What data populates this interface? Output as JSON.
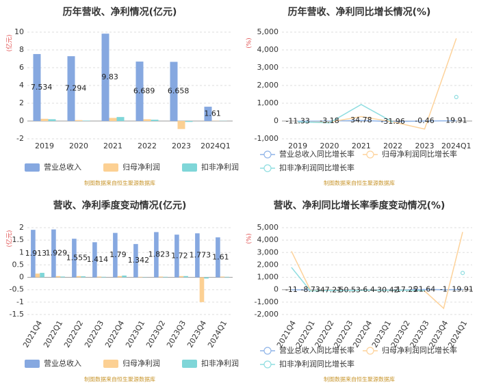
{
  "chart_data": [
    {
      "type": "bar",
      "title": "历年营收、净利情况(亿元)",
      "y_label": "(亿元)",
      "categories": [
        "2019",
        "2020",
        "2021",
        "2022",
        "2023",
        "2024Q1"
      ],
      "series": [
        {
          "name": "营业总收入",
          "color": "#86a8e0",
          "labels": true,
          "values": [
            7.534,
            7.294,
            9.83,
            6.689,
            6.658,
            1.61
          ]
        },
        {
          "name": "归母净利润",
          "color": "#fcd093",
          "values": [
            0.25,
            0.1,
            0.35,
            0.2,
            -0.9,
            0.02
          ]
        },
        {
          "name": "扣非净利润",
          "color": "#7fd6d8",
          "values": [
            0.2,
            0.05,
            0.45,
            0.15,
            -0.1,
            0.02
          ]
        }
      ],
      "ylim": [
        -2,
        10
      ],
      "yticks": [
        -2,
        0,
        2,
        4,
        6,
        8,
        10
      ],
      "grid": true,
      "note": "制图数据来自恒生聚源数据库"
    },
    {
      "type": "line",
      "title": "历年营收、净利同比增长情况(%)",
      "y_label": "(%)",
      "categories": [
        "2019",
        "2020",
        "2021",
        "2022",
        "2023",
        "2024Q1"
      ],
      "series": [
        {
          "name": "营业总收入同比增长率",
          "color": "#8fb4e8",
          "labels": true,
          "values": [
            -11.33,
            -3.18,
            34.78,
            -31.96,
            -0.46,
            19.91
          ]
        },
        {
          "name": "归母净利润同比增长率",
          "color": "#fdd29a",
          "values": [
            -60,
            -60,
            250,
            -50,
            -450,
            4650
          ]
        },
        {
          "name": "扣非净利润同比增长率",
          "color": "#8edde0",
          "values": [
            -50,
            -100,
            930,
            -60,
            null,
            1350
          ]
        }
      ],
      "ylim": [
        -1000,
        5000
      ],
      "yticks": [
        {
          "value": -1000,
          "label": "-1,000"
        },
        0,
        {
          "value": 1000,
          "label": "1,000"
        },
        {
          "value": 2000,
          "label": "2,000"
        },
        {
          "value": 3000,
          "label": "3,000"
        },
        {
          "value": 4000,
          "label": "4,000"
        },
        {
          "value": 5000,
          "label": "5,000"
        }
      ],
      "grid": true,
      "note": "制图数据来自恒生聚源数据库"
    },
    {
      "type": "bar",
      "title": "营收、净利季度变动情况(亿元)",
      "y_label": "(亿元)",
      "categories": [
        "2021Q4",
        "2022Q1",
        "2022Q2",
        "2022Q3",
        "2022Q4",
        "2023Q1",
        "2023Q2",
        "2023Q3",
        "2023Q4",
        "2024Q1"
      ],
      "series": [
        {
          "name": "营业总收入",
          "color": "#86a8e0",
          "labels": true,
          "values": [
            1.913,
            1.929,
            1.555,
            1.414,
            1.79,
            1.342,
            1.823,
            1.72,
            1.773,
            1.61
          ]
        },
        {
          "name": "归母净利润",
          "color": "#fcd093",
          "values": [
            0.15,
            0.05,
            0.05,
            0.03,
            0.05,
            0.02,
            0.03,
            0.05,
            -1.0,
            0.03
          ]
        },
        {
          "name": "扣非净利润",
          "color": "#7fd6d8",
          "values": [
            0.18,
            0.03,
            0.04,
            0.02,
            0.07,
            0.01,
            0.02,
            0.05,
            -0.05,
            0.02
          ]
        }
      ],
      "ylim": [
        -1.5,
        2
      ],
      "yticks": [
        -1.5,
        -1,
        -0.5,
        0,
        0.5,
        1,
        1.5,
        2
      ],
      "grid": true,
      "note": "制图数据来自恒生聚源数据库"
    },
    {
      "type": "line",
      "title": "营收、净利同比增长率季度变动情况(%)",
      "y_label": "(%)",
      "categories": [
        "2021Q4",
        "2022Q1",
        "2022Q2",
        "2022Q3",
        "2022Q4",
        "2023Q1",
        "2023Q2",
        "2023Q3",
        "2023Q4",
        "2024Q1"
      ],
      "series": [
        {
          "name": "营业总收入同比增长率",
          "color": "#8fb4e8",
          "labels": true,
          "values": [
            -11,
            -8.73,
            -47.21,
            -50.53,
            -6.4,
            -30.42,
            -17.25,
            21.64,
            -1,
            19.91
          ]
        },
        {
          "name": "归母净利润同比增长率",
          "color": "#fdd29a",
          "values": [
            3100,
            -50,
            -40,
            -60,
            -30,
            -50,
            -40,
            -100,
            -1500,
            4650
          ]
        },
        {
          "name": "扣非净利润同比增长率",
          "color": "#8edde0",
          "values": [
            1800,
            -100,
            -50,
            -60,
            -40,
            -50,
            -40,
            -80,
            null,
            1350
          ]
        }
      ],
      "ylim": [
        -2000,
        5000
      ],
      "yticks": [
        {
          "value": -2000,
          "label": "-2,000"
        },
        {
          "value": -1000,
          "label": "-1,000"
        },
        0,
        {
          "value": 1000,
          "label": "1,000"
        },
        {
          "value": 2000,
          "label": "2,000"
        },
        {
          "value": 3000,
          "label": "3,000"
        },
        {
          "value": 4000,
          "label": "4,000"
        },
        {
          "value": 5000,
          "label": "5,000"
        }
      ],
      "grid": true,
      "note": "制图数据来自恒生聚源数据库"
    }
  ]
}
